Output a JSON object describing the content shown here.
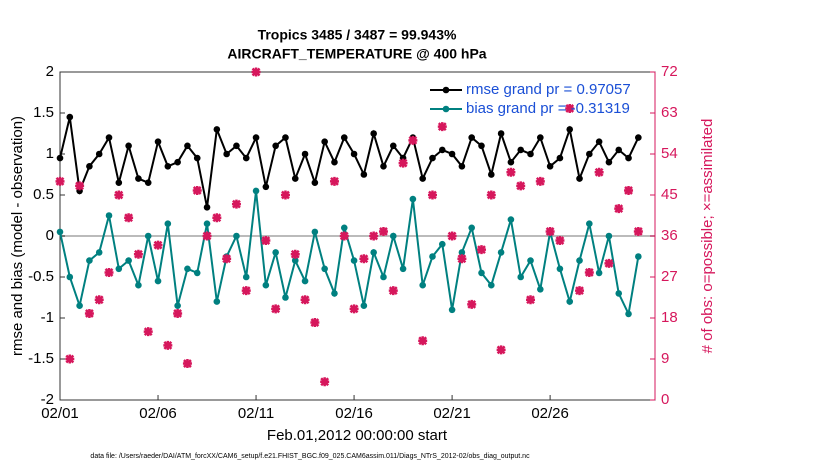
{
  "chart_data": {
    "type": "line",
    "title": "Tropics 3485 / 3487 = 99.943%",
    "subtitle": "AIRCRAFT_TEMPERATURE @ 400 hPa",
    "y_label": "rmse and bias (model - observation)",
    "y2_label": "# of obs: o=possible; ×=assimilated",
    "x_label": "Feb.01,2012 00:00:00 start",
    "footnote": "data file: /Users/raeder/DAI/ATM_forcXX/CAM6_setup/f.e21.FHIST_BGC.f09_025.CAM6assim.011/Diags_NTrS_2012-02/obs_diag_output.nc",
    "x": [
      0,
      0.5,
      1,
      1.5,
      2,
      2.5,
      3,
      3.5,
      4,
      4.5,
      5,
      5.5,
      6,
      6.5,
      7,
      7.5,
      8,
      8.5,
      9,
      9.5,
      10,
      10.5,
      11,
      11.5,
      12,
      12.5,
      13,
      13.5,
      14,
      14.5,
      15,
      15.5,
      16,
      16.5,
      17,
      17.5,
      18,
      18.5,
      19,
      19.5,
      20,
      20.5,
      21,
      21.5,
      22,
      22.5,
      23,
      23.5,
      24,
      24.5,
      25,
      25.5,
      26,
      26.5,
      27,
      27.5,
      28,
      28.5,
      29,
      29.5
    ],
    "xlim": [
      0,
      30.35
    ],
    "xticks": [
      {
        "value": 0,
        "label": "02/01"
      },
      {
        "value": 5,
        "label": "02/06"
      },
      {
        "value": 10,
        "label": "02/11"
      },
      {
        "value": 15,
        "label": "02/16"
      },
      {
        "value": 20,
        "label": "02/21"
      },
      {
        "value": 25,
        "label": "02/26"
      }
    ],
    "ylim": [
      -2,
      2
    ],
    "yticks": [
      -2,
      -1.5,
      -1,
      -0.5,
      0,
      0.5,
      1,
      1.5,
      2
    ],
    "y2lim": [
      0,
      72
    ],
    "y2ticks": [
      0,
      9,
      18,
      27,
      36,
      45,
      54,
      63,
      72
    ],
    "zero_line_color": "#bbbbbb",
    "series": [
      {
        "name": "rmse grand pr = 0.97057",
        "color": "#000000",
        "values": [
          0.95,
          1.45,
          0.55,
          0.85,
          1.0,
          1.2,
          0.65,
          1.1,
          0.7,
          0.65,
          1.15,
          0.85,
          0.9,
          1.1,
          0.95,
          0.35,
          1.3,
          1.0,
          1.1,
          0.95,
          1.2,
          0.6,
          1.1,
          1.2,
          0.7,
          1.0,
          0.65,
          1.15,
          0.9,
          1.2,
          1.0,
          0.75,
          1.25,
          0.85,
          1.1,
          0.95,
          1.2,
          0.7,
          0.95,
          1.05,
          1.0,
          0.85,
          1.2,
          1.1,
          0.75,
          1.25,
          0.9,
          1.05,
          1.0,
          1.2,
          0.85,
          0.95,
          1.3,
          0.7,
          1.0,
          1.15,
          0.9,
          1.05,
          0.95,
          1.2
        ]
      },
      {
        "name": "bias grand pr = -0.31319",
        "color": "#008080",
        "values": [
          0.05,
          -0.5,
          -0.85,
          -0.3,
          -0.2,
          0.25,
          -0.4,
          -0.3,
          -0.6,
          0.0,
          -0.55,
          0.15,
          -0.85,
          -0.4,
          -0.45,
          0.15,
          -0.8,
          -0.25,
          0.0,
          -0.5,
          0.55,
          -0.6,
          -0.2,
          -0.75,
          -0.3,
          -0.55,
          0.05,
          -0.4,
          -0.7,
          0.1,
          -0.3,
          -0.85,
          -0.2,
          -0.5,
          0.0,
          -0.4,
          0.45,
          -0.6,
          -0.25,
          -0.1,
          -0.9,
          -0.2,
          0.1,
          -0.45,
          -0.6,
          -0.2,
          0.2,
          -0.5,
          -0.3,
          -0.65,
          0.05,
          -0.4,
          -0.8,
          -0.3,
          0.15,
          -0.45,
          0.0,
          -0.7,
          -0.95,
          -0.25
        ]
      },
      {
        "color": "#d6175c",
        "axis": "y2",
        "marker": "x",
        "values": [
          48,
          9,
          47,
          19,
          22,
          28,
          45,
          40,
          32,
          15,
          34,
          12,
          19,
          8,
          46,
          36,
          40,
          31,
          43,
          24,
          72,
          35,
          20,
          45,
          32,
          22,
          17,
          4,
          48,
          36,
          20,
          31,
          36,
          37,
          24,
          52,
          57,
          13,
          45,
          60,
          36,
          31,
          21,
          33,
          45,
          11,
          50,
          47,
          22,
          48,
          37,
          35,
          64,
          24,
          28,
          50,
          30,
          42,
          46,
          37
        ]
      }
    ]
  }
}
